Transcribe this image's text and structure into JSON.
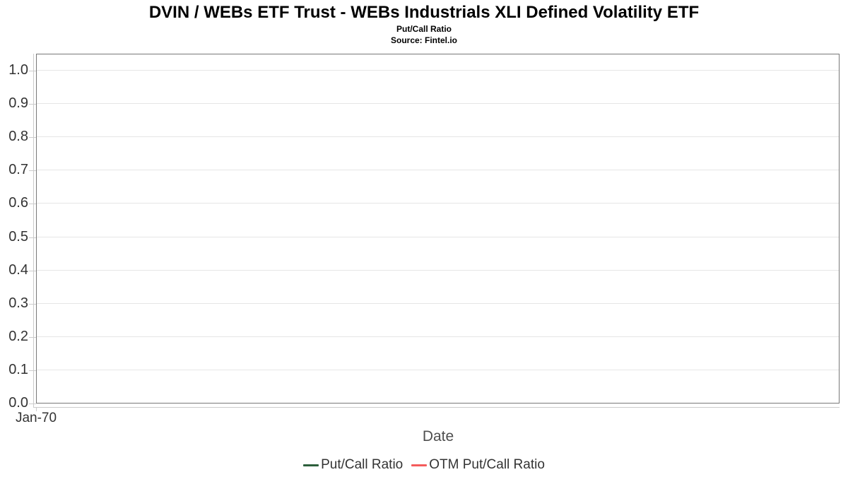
{
  "header": {
    "title": "DVIN / WEBs ETF Trust - WEBs Industrials XLI Defined Volatility ETF",
    "subtitle": "Put/Call Ratio",
    "source": "Source: Fintel.io"
  },
  "chart_data": {
    "type": "line",
    "title": "DVIN / WEBs ETF Trust - WEBs Industrials XLI Defined Volatility ETF",
    "subtitle": "Put/Call Ratio",
    "source": "Source: Fintel.io",
    "xlabel": "Date",
    "ylabel": "",
    "ylim": [
      0.0,
      1.05
    ],
    "y_tick_values": [
      0.0,
      0.1,
      0.2,
      0.3,
      0.4,
      0.5,
      0.6,
      0.7,
      0.8,
      0.9,
      1.0
    ],
    "y_tick_labels": [
      "0.0",
      "0.1",
      "0.2",
      "0.3",
      "0.4",
      "0.5",
      "0.6",
      "0.7",
      "0.8",
      "0.9",
      "1.0"
    ],
    "x_tick_labels": [
      "Jan-70"
    ],
    "grid": "horizontal-only",
    "gridline_color": "#e6e6e6",
    "axis_line_color": "#cccccc",
    "plot_border_color": "#787878",
    "legend_position": "bottom-center",
    "series": [
      {
        "name": "Put/Call Ratio",
        "color": "#2c5f3c",
        "x": [],
        "values": []
      },
      {
        "name": "OTM Put/Call Ratio",
        "color": "#f45b5b",
        "x": [],
        "values": []
      }
    ]
  }
}
